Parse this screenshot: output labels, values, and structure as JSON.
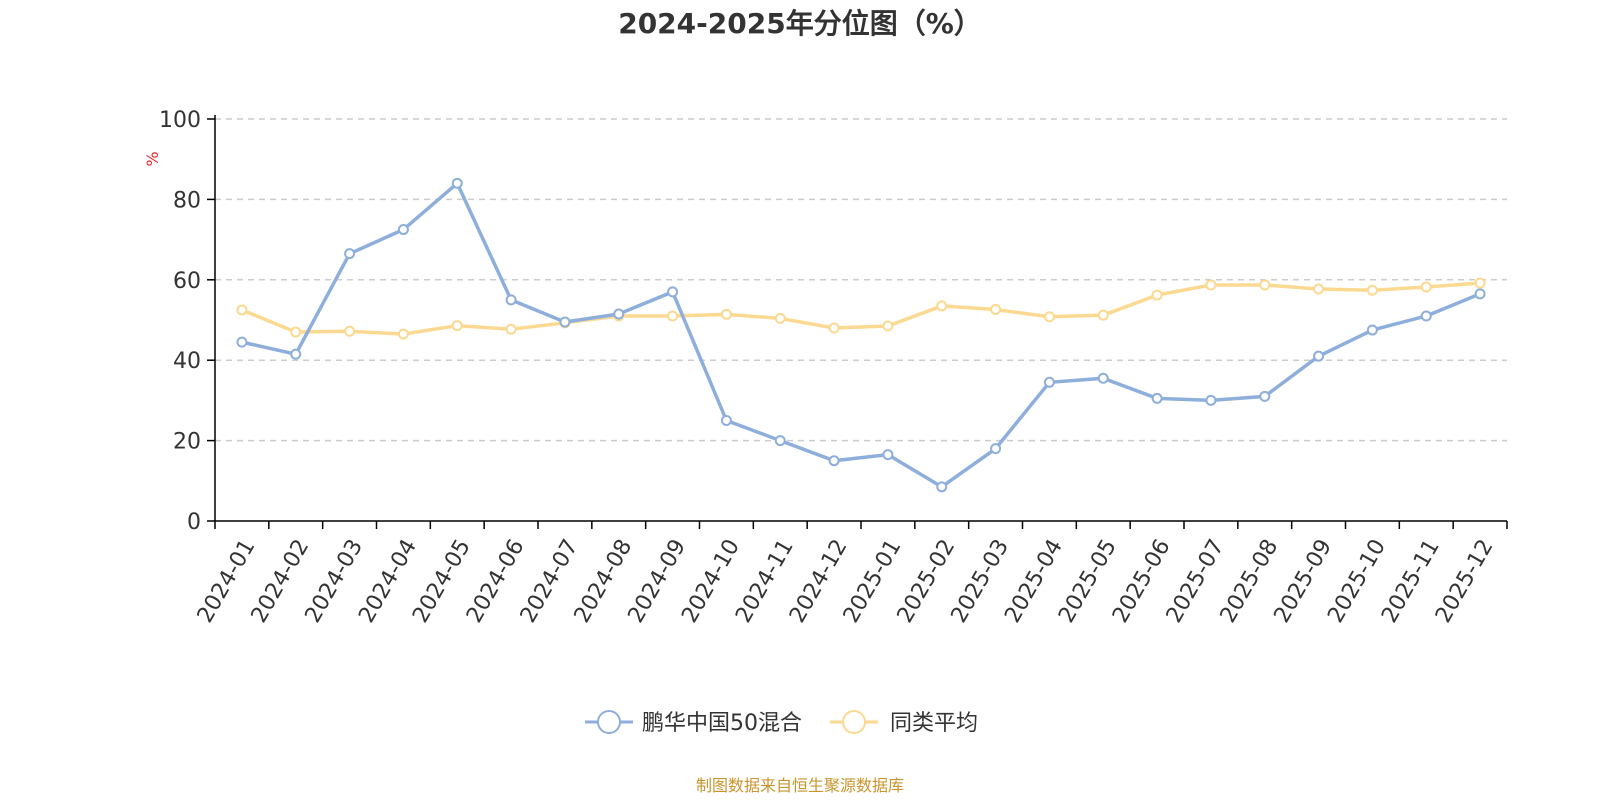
{
  "chart_data": {
    "type": "line",
    "title": "2024-2025年分位图（%）",
    "ylabel": "%",
    "ylim": [
      0,
      100
    ],
    "yticks": [
      0,
      20,
      40,
      60,
      80,
      100
    ],
    "grid": true,
    "legend_position": "bottom-center",
    "categories": [
      "2024-01",
      "2024-02",
      "2024-03",
      "2024-04",
      "2024-05",
      "2024-06",
      "2024-07",
      "2024-08",
      "2024-09",
      "2024-10",
      "2024-11",
      "2024-12",
      "2025-01",
      "2025-02",
      "2025-03",
      "2025-04",
      "2025-05",
      "2025-06",
      "2025-07",
      "2025-08",
      "2025-09",
      "2025-10",
      "2025-11",
      "2025-12"
    ],
    "series": [
      {
        "name": "鹏华中国50混合",
        "color": "#8eaedb",
        "values": [
          44.5,
          41.5,
          66.5,
          72.5,
          84,
          55,
          49.5,
          51.5,
          57,
          25,
          20,
          15,
          16.5,
          8.5,
          18,
          34.5,
          35.5,
          30.5,
          30,
          31,
          41,
          47.5,
          51,
          56.5
        ]
      },
      {
        "name": "同类平均",
        "color": "#fcd991",
        "values": [
          52.5,
          47,
          47.2,
          46.5,
          48.6,
          47.7,
          49.3,
          51,
          51,
          51.4,
          50.4,
          48,
          48.5,
          53.5,
          52.6,
          50.8,
          51.2,
          56.2,
          58.7,
          58.7,
          57.7,
          57.4,
          58.2,
          59.2
        ]
      }
    ]
  },
  "source_text": "制图数据来自恒生聚源数据库",
  "ylabel_color": "#e8272c",
  "source_color": "#c8952e",
  "axis_color": "#000000",
  "grid_color": "#cccccc"
}
